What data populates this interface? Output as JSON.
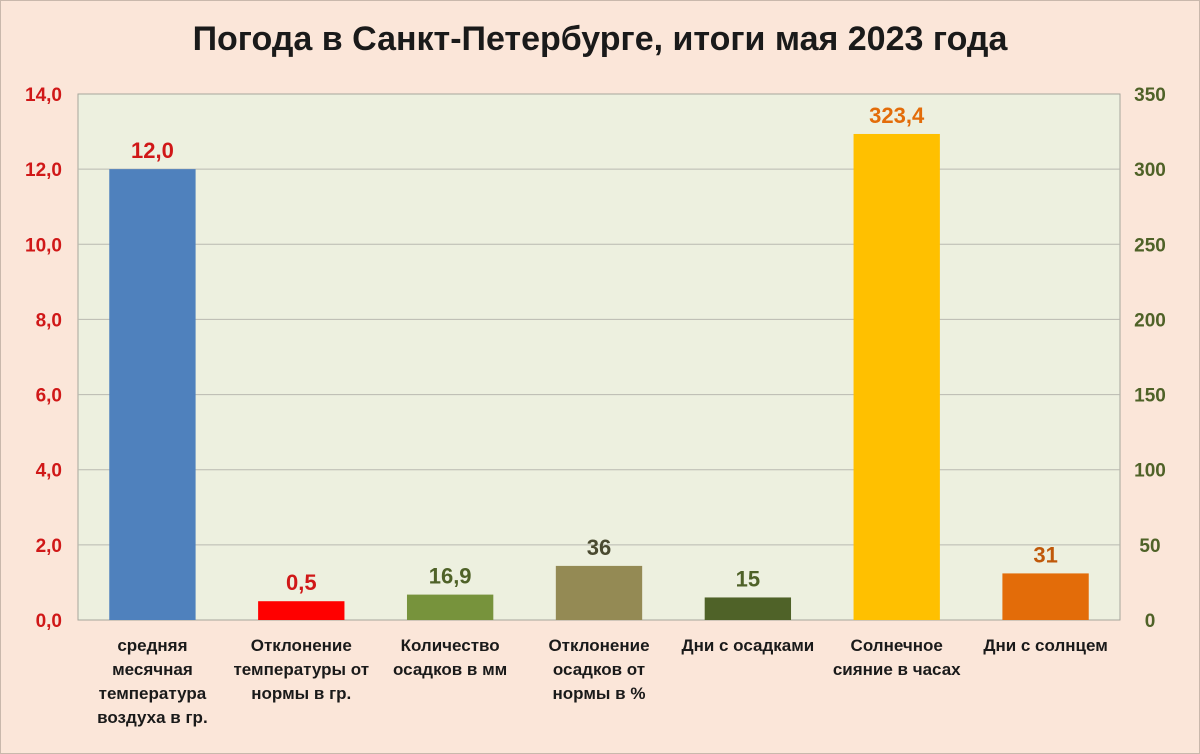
{
  "chart_data": {
    "type": "bar",
    "title": "Погода в Санкт-Петербурге, итоги мая 2023 года",
    "xlabel": "",
    "ylabel": "",
    "grid": true,
    "ylim_left": [
      0,
      14
    ],
    "yticks_left": [
      "0,0",
      "2,0",
      "4,0",
      "6,0",
      "8,0",
      "10,0",
      "12,0",
      "14,0"
    ],
    "ylim_right": [
      0,
      350
    ],
    "yticks_right": [
      "0",
      "50",
      "100",
      "150",
      "200",
      "250",
      "300",
      "350"
    ],
    "colors": {
      "plot_background": "#edf0df",
      "page_background": "#fbe6d9",
      "grid": "#b9b9b0",
      "left_axis_text": "#d01818",
      "right_axis_text": "#4f6228"
    },
    "categories": [
      {
        "label_lines": [
          "средняя",
          "месячная",
          "температура",
          "воздуха в гр."
        ],
        "value": 12.0,
        "value_label": "12,0",
        "axis": "left",
        "color": "#4f81bd",
        "label_color": "#d01818"
      },
      {
        "label_lines": [
          "Отклонение",
          "температуры от",
          "нормы в гр."
        ],
        "value": 0.5,
        "value_label": "0,5",
        "axis": "left",
        "color": "#ff0000",
        "label_color": "#d01818"
      },
      {
        "label_lines": [
          "Количество",
          "осадков в мм"
        ],
        "value": 16.9,
        "value_label": "16,9",
        "axis": "right",
        "color": "#77933c",
        "label_color": "#4f6228"
      },
      {
        "label_lines": [
          "Отклонение",
          "осадков от",
          "нормы в %"
        ],
        "value": 36,
        "value_label": "36",
        "axis": "right",
        "color": "#948a54",
        "label_color": "#4a4a30"
      },
      {
        "label_lines": [
          "Дни с осадками"
        ],
        "value": 15,
        "value_label": "15",
        "axis": "right",
        "color": "#4f6228",
        "label_color": "#4f6228"
      },
      {
        "label_lines": [
          "Солнечное",
          "сияние в часах"
        ],
        "value": 323.4,
        "value_label": "323,4",
        "axis": "right",
        "color": "#ffc000",
        "label_color": "#e36c09"
      },
      {
        "label_lines": [
          "Дни с солнцем"
        ],
        "value": 31,
        "value_label": "31",
        "axis": "right",
        "color": "#e36c09",
        "label_color": "#c0590a"
      }
    ]
  }
}
